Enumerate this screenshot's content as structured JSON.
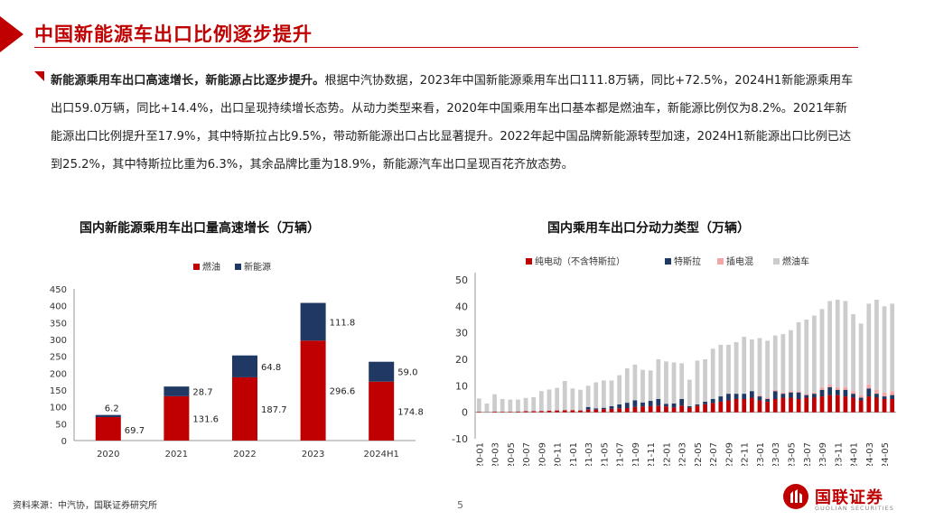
{
  "header": {
    "title": "中国新能源车出口比例逐步提升"
  },
  "summary": {
    "lead": "新能源乘用车出口高速增长，新能源占比逐步提升。",
    "body": "根据中汽协数据，2023年中国新能源乘用车出口111.8万辆，同比+72.5%，2024H1新能源乘用车出口59.0万辆，同比+14.4%，出口呈现持续增长态势。从动力类型来看，2020年中国乘用车出口基本都是燃油车，新能源比例仅为8.2%。2021年新能源出口比例提升至17.9%，其中特斯拉占比9.5%，带动新能源出口占比显著提升。2022年起中国品牌新能源转型加速，2024H1新能源出口比例已达到25.2%，其中特斯拉比重为6.3%，其余品牌比重为18.9%，新能源汽车出口呈现百花齐放态势。"
  },
  "colors": {
    "accent": "#c00000",
    "fuel": "#c00000",
    "nev": "#1f3864",
    "bev": "#c00000",
    "tesla": "#1f3864",
    "phev": "#f4a6a6",
    "ice": "#cccccc"
  },
  "chart_data": [
    {
      "type": "bar",
      "stacked": true,
      "title": "国内新能源乘用车出口量高速增长（万辆）",
      "categories": [
        "2020",
        "2021",
        "2022",
        "2023",
        "2024H1"
      ],
      "series": [
        {
          "name": "燃油",
          "values": [
            69.7,
            131.6,
            187.7,
            296.6,
            174.8
          ],
          "labels": [
            "69.7",
            "131.6",
            "187.7",
            "296.6",
            "174.8"
          ]
        },
        {
          "name": "新能源",
          "values": [
            6.2,
            28.7,
            64.8,
            111.8,
            59.0
          ],
          "labels": [
            "6.2",
            "28.7",
            "64.8",
            "111.8",
            "59.0"
          ]
        }
      ],
      "ylim": [
        0,
        450
      ],
      "yticks": [
        0,
        50,
        100,
        150,
        200,
        250,
        300,
        350,
        400,
        450
      ],
      "legend": "top-center",
      "xlabel": "",
      "ylabel": ""
    },
    {
      "type": "bar",
      "stacked": true,
      "title": "国内乘用车出口分动力类型（万辆）",
      "x": [
        "2020-01",
        "2020-02",
        "2020-03",
        "2020-04",
        "2020-05",
        "2020-06",
        "2020-07",
        "2020-08",
        "2020-09",
        "2020-10",
        "2020-11",
        "2020-12",
        "2021-01",
        "2021-02",
        "2021-03",
        "2021-04",
        "2021-05",
        "2021-06",
        "2021-07",
        "2021-08",
        "2021-09",
        "2021-10",
        "2021-11",
        "2021-12",
        "2022-01",
        "2022-02",
        "2022-03",
        "2022-04",
        "2022-05",
        "2022-06",
        "2022-07",
        "2022-08",
        "2022-09",
        "2022-10",
        "2022-11",
        "2022-12",
        "2023-01",
        "2023-02",
        "2023-03",
        "2023-04",
        "2023-05",
        "2023-06",
        "2023-07",
        "2023-08",
        "2023-09",
        "2023-10",
        "2023-11",
        "2023-12",
        "2024-01",
        "2024-02",
        "2024-03",
        "2024-04",
        "2024-05",
        "2024-06"
      ],
      "tick_labels": [
        "2020-01",
        "2020-03",
        "2020-05",
        "2020-07",
        "2020-09",
        "2020-11",
        "2021-01",
        "2021-03",
        "2021-05",
        "2021-07",
        "2021-09",
        "2021-11",
        "2022-01",
        "2022-03",
        "2022-05",
        "2022-07",
        "2022-09",
        "2022-11",
        "2023-01",
        "2023-03",
        "2023-05",
        "2023-07",
        "2023-09",
        "2023-11",
        "2024-01",
        "2024-03",
        "2024-05"
      ],
      "series": [
        {
          "name": "纯电动（不含特斯拉）",
          "values": [
            0.2,
            0.1,
            0.3,
            0.2,
            0.2,
            0.3,
            0.4,
            0.4,
            0.5,
            0.6,
            0.7,
            0.8,
            0.8,
            0.7,
            1.0,
            1.0,
            1.2,
            1.3,
            1.5,
            1.6,
            2.0,
            2.2,
            2.3,
            2.5,
            2.2,
            1.8,
            2.5,
            1.8,
            2.5,
            3.0,
            3.5,
            4.0,
            4.5,
            5.0,
            5.0,
            5.5,
            4.5,
            4.0,
            5.0,
            5.5,
            5.5,
            5.0,
            5.5,
            5.5,
            6.0,
            6.5,
            6.5,
            6.0,
            5.5,
            4.5,
            6.0,
            5.5,
            5.0,
            5.0
          ]
        },
        {
          "name": "特斯拉",
          "values": [
            0,
            0,
            0,
            0,
            0,
            0,
            0,
            0,
            0,
            0,
            0,
            0,
            0,
            0,
            1.0,
            0.5,
            0.5,
            1.0,
            1.5,
            2.0,
            2.5,
            1.5,
            2.0,
            2.5,
            1.0,
            1.5,
            2.5,
            0.5,
            0.5,
            1.0,
            1.5,
            2.0,
            2.5,
            2.0,
            2.0,
            2.5,
            1.5,
            1.0,
            3.0,
            1.5,
            2.0,
            2.5,
            1.0,
            1.5,
            2.5,
            3.0,
            2.0,
            2.5,
            1.5,
            1.0,
            3.0,
            1.5,
            1.0,
            1.5
          ]
        },
        {
          "name": "插电混",
          "values": [
            0,
            0,
            0,
            0,
            0,
            0,
            0,
            0,
            0,
            0,
            0,
            0,
            0,
            0,
            0,
            0,
            0,
            0,
            0,
            0,
            0,
            0,
            0,
            0,
            0,
            0,
            0,
            0,
            0,
            0,
            0,
            0,
            0,
            0,
            0,
            0,
            0.5,
            0.5,
            0.5,
            0.5,
            0.5,
            0.5,
            0.5,
            0.5,
            1.0,
            1.0,
            1.0,
            1.0,
            1.0,
            1.0,
            1.5,
            1.5,
            1.5,
            1.5
          ]
        },
        {
          "name": "燃油车",
          "values": [
            5.0,
            3.2,
            6.5,
            4.8,
            4.6,
            4.5,
            5.0,
            5.3,
            7.5,
            8.0,
            8.5,
            11.0,
            8.2,
            7.8,
            8.0,
            9.8,
            10.3,
            9.7,
            11.0,
            13.0,
            13.5,
            12.3,
            11.5,
            15.0,
            16.0,
            15.5,
            13.5,
            10.0,
            16.5,
            16.0,
            19.0,
            19.5,
            18.5,
            19.5,
            21.5,
            19.5,
            21.5,
            21.5,
            20.5,
            22.0,
            23.0,
            26.0,
            28.0,
            29.0,
            29.5,
            31.5,
            33.0,
            32.5,
            29.0,
            27.0,
            30.5,
            34.0,
            32.5,
            33.0
          ]
        }
      ],
      "ylim": [
        -10,
        50
      ],
      "yticks": [
        -10,
        0,
        10,
        20,
        30,
        40,
        50
      ],
      "legend": "top-center",
      "xlabel": "",
      "ylabel": ""
    }
  ],
  "footer": {
    "source": "资料来源：中汽协，国联证券研究所",
    "page": "5"
  },
  "logo": {
    "name": "国联证券",
    "en": "GUOLIAN SECURITIES"
  }
}
